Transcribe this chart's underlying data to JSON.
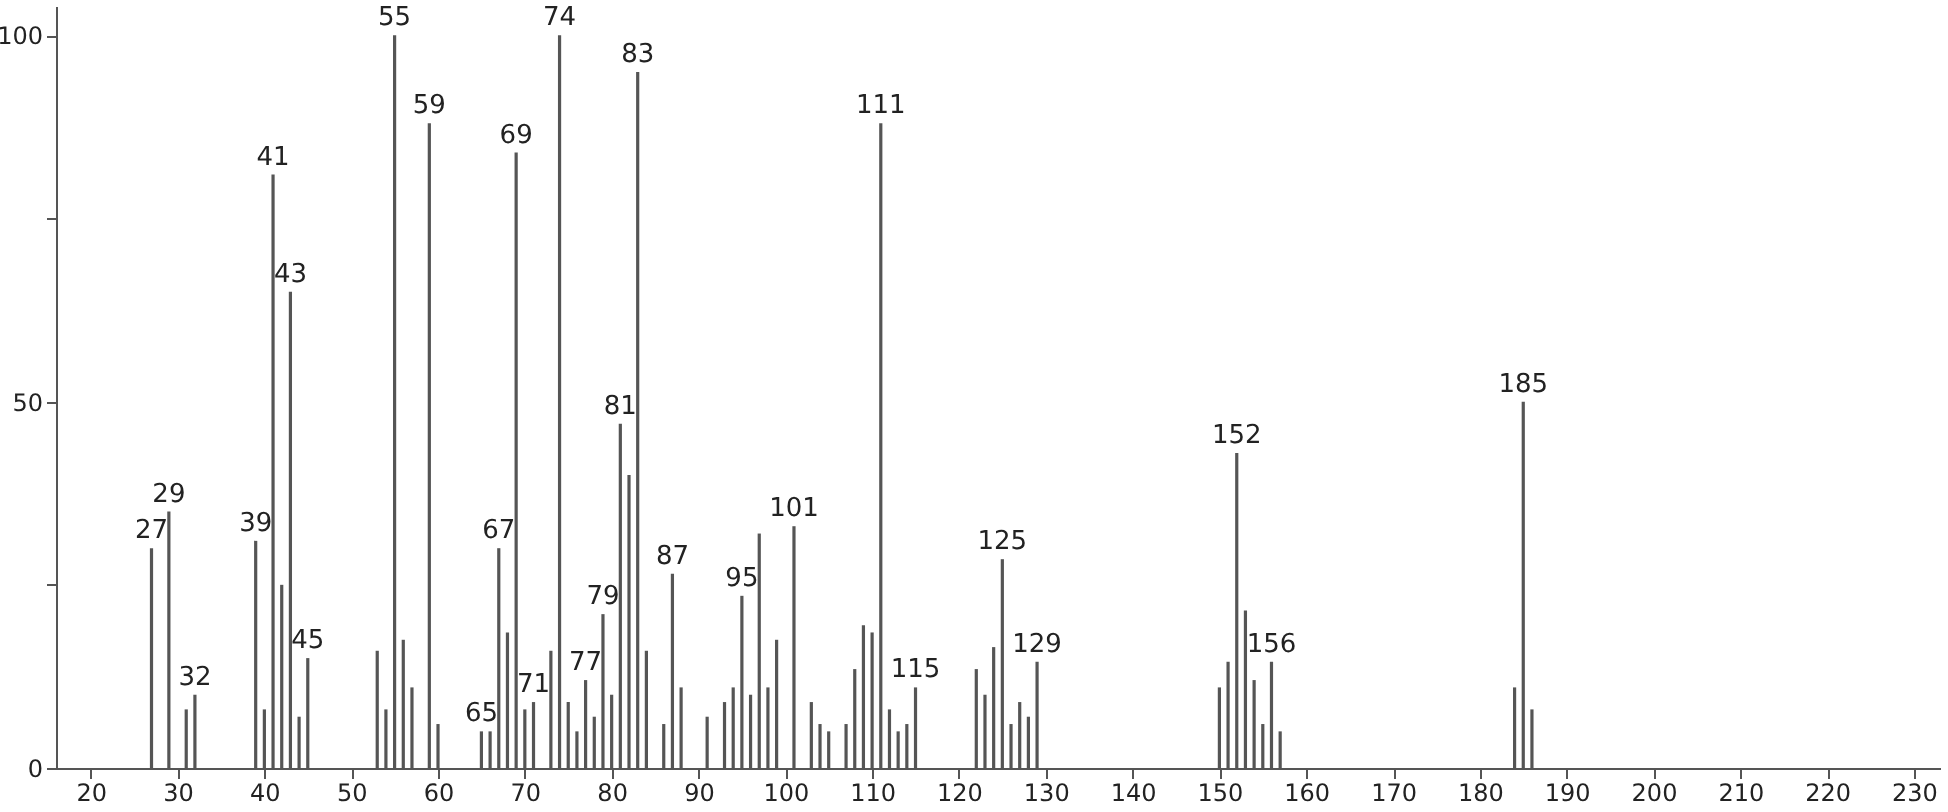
{
  "chart_data": {
    "type": "bar",
    "x": [
      27,
      29,
      31,
      32,
      39,
      40,
      41,
      42,
      43,
      44,
      45,
      53,
      54,
      55,
      56,
      57,
      59,
      60,
      65,
      66,
      67,
      68,
      69,
      70,
      71,
      73,
      74,
      75,
      76,
      77,
      78,
      79,
      80,
      81,
      82,
      83,
      84,
      86,
      87,
      88,
      91,
      93,
      94,
      95,
      96,
      97,
      98,
      99,
      101,
      103,
      104,
      105,
      107,
      108,
      109,
      110,
      111,
      112,
      113,
      114,
      115,
      122,
      123,
      124,
      125,
      126,
      127,
      128,
      129,
      150,
      151,
      152,
      153,
      154,
      155,
      156,
      157,
      184,
      185,
      186
    ],
    "values": [
      30,
      35,
      8,
      10,
      31,
      8,
      81,
      25,
      65,
      7,
      15,
      16,
      8,
      100,
      17.5,
      11,
      88,
      6,
      5,
      5,
      30,
      18.5,
      84,
      8,
      9,
      16,
      100,
      9,
      5,
      12,
      7,
      21,
      10,
      47,
      40,
      95,
      16,
      6,
      26.5,
      11,
      7,
      9,
      11,
      23.5,
      10,
      32,
      11,
      17.5,
      33,
      9,
      6,
      5,
      6,
      13.5,
      19.5,
      18.5,
      88,
      8,
      5,
      6,
      11,
      13.5,
      10,
      16.5,
      28.5,
      6,
      9,
      7,
      14.5,
      11,
      14.5,
      43,
      21.5,
      12,
      6,
      14.5,
      5,
      11,
      50,
      8
    ],
    "color": "#555555",
    "xlim": [
      16,
      233
    ],
    "xticks": [
      20,
      30,
      40,
      50,
      60,
      70,
      80,
      90,
      100,
      110,
      120,
      130,
      140,
      150,
      160,
      170,
      180,
      190,
      200,
      210,
      220,
      230
    ],
    "ylim": [
      0,
      104
    ],
    "yticks": [
      0,
      {
        "value": 25,
        "label": null
      },
      50,
      {
        "value": 75,
        "label": null
      },
      100
    ],
    "grid": false,
    "annotations": [
      {
        "text": "27",
        "x": 27,
        "y": 30
      },
      {
        "text": "29",
        "x": 29,
        "y": 35
      },
      {
        "text": "32",
        "x": 32,
        "y": 10
      },
      {
        "text": "39",
        "x": 39,
        "y": 31
      },
      {
        "text": "41",
        "x": 41,
        "y": 81
      },
      {
        "text": "43",
        "x": 43,
        "y": 65
      },
      {
        "text": "45",
        "x": 45,
        "y": 15
      },
      {
        "text": "55",
        "x": 55,
        "y": 100
      },
      {
        "text": "59",
        "x": 59,
        "y": 88
      },
      {
        "text": "65",
        "x": 65,
        "y": 5
      },
      {
        "text": "67",
        "x": 67,
        "y": 30
      },
      {
        "text": "69",
        "x": 69,
        "y": 84
      },
      {
        "text": "71",
        "x": 71,
        "y": 9
      },
      {
        "text": "74",
        "x": 74,
        "y": 100
      },
      {
        "text": "77",
        "x": 77,
        "y": 12
      },
      {
        "text": "79",
        "x": 79,
        "y": 21
      },
      {
        "text": "81",
        "x": 81,
        "y": 47
      },
      {
        "text": "83",
        "x": 83,
        "y": 95
      },
      {
        "text": "87",
        "x": 87,
        "y": 26.5
      },
      {
        "text": "95",
        "x": 95,
        "y": 23.5
      },
      {
        "text": "101",
        "x": 101,
        "y": 33
      },
      {
        "text": "111",
        "x": 111,
        "y": 88
      },
      {
        "text": "115",
        "x": 115,
        "y": 11
      },
      {
        "text": "125",
        "x": 125,
        "y": 28.5
      },
      {
        "text": "129",
        "x": 129,
        "y": 14.5
      },
      {
        "text": "152",
        "x": 152,
        "y": 43
      },
      {
        "text": "156",
        "x": 156,
        "y": 14.5
      },
      {
        "text": "185",
        "x": 185,
        "y": 50
      }
    ]
  }
}
